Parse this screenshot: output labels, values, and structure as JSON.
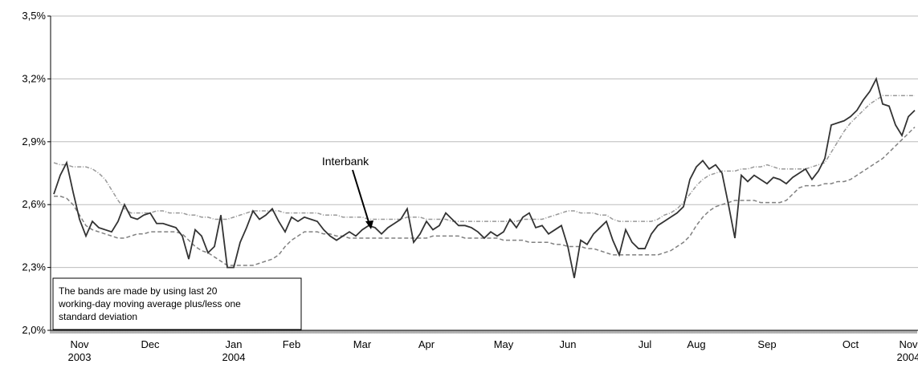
{
  "chart_data": {
    "type": "line",
    "categories": [
      null,
      null,
      null,
      null,
      "Nov 2003",
      null,
      null,
      null,
      null,
      null,
      null,
      null,
      null,
      null,
      null,
      "Dec",
      null,
      null,
      null,
      null,
      null,
      null,
      null,
      null,
      null,
      null,
      null,
      null,
      "Jan 2004",
      null,
      null,
      null,
      null,
      null,
      null,
      null,
      null,
      "Feb",
      null,
      null,
      null,
      null,
      null,
      null,
      null,
      null,
      null,
      null,
      "Mar",
      null,
      null,
      null,
      null,
      null,
      null,
      null,
      null,
      null,
      "Apr",
      null,
      null,
      null,
      null,
      null,
      null,
      null,
      null,
      null,
      null,
      null,
      "May",
      null,
      null,
      null,
      null,
      null,
      null,
      null,
      null,
      null,
      "Jun",
      null,
      null,
      null,
      null,
      null,
      null,
      null,
      null,
      null,
      null,
      null,
      "Jul",
      null,
      null,
      null,
      null,
      null,
      null,
      null,
      "Aug",
      null,
      null,
      null,
      null,
      null,
      null,
      null,
      null,
      null,
      null,
      "Sep",
      null,
      null,
      null,
      null,
      null,
      null,
      null,
      null,
      null,
      null,
      null,
      null,
      "Oct",
      null,
      null,
      null,
      null,
      null,
      null,
      null,
      null,
      "Nov 2004",
      null
    ],
    "series": [
      {
        "color": "#333333",
        "style": "solid",
        "values": [
          2.65,
          2.74,
          2.8,
          2.66,
          2.53,
          2.45,
          2.52,
          2.49,
          2.48,
          2.47,
          2.52,
          2.6,
          2.54,
          2.53,
          2.55,
          2.56,
          2.51,
          2.51,
          2.5,
          2.49,
          2.45,
          2.34,
          2.48,
          2.45,
          2.37,
          2.4,
          2.55,
          2.3,
          2.3,
          2.42,
          2.49,
          2.57,
          2.53,
          2.55,
          2.58,
          2.52,
          2.47,
          2.54,
          2.52,
          2.54,
          2.53,
          2.52,
          2.48,
          2.45,
          2.43,
          2.45,
          2.47,
          2.45,
          2.48,
          2.5,
          2.49,
          2.46,
          2.49,
          2.51,
          2.53,
          2.58,
          2.42,
          2.46,
          2.52,
          2.48,
          2.5,
          2.56,
          2.53,
          2.5,
          2.5,
          2.49,
          2.47,
          2.44,
          2.47,
          2.45,
          2.47,
          2.53,
          2.49,
          2.54,
          2.56,
          2.49,
          2.5,
          2.46,
          2.48,
          2.5,
          2.4,
          2.25,
          2.43,
          2.41,
          2.46,
          2.49,
          2.52,
          2.43,
          2.36,
          2.48,
          2.42,
          2.39,
          2.39,
          2.46,
          2.5,
          2.52,
          2.54,
          2.56,
          2.59,
          2.72,
          2.78,
          2.81,
          2.77,
          2.79,
          2.75,
          2.6,
          2.44,
          2.74,
          2.71,
          2.74,
          2.72,
          2.7,
          2.73,
          2.72,
          2.7,
          2.73,
          2.75,
          2.77,
          2.72,
          2.76,
          2.82,
          2.98,
          2.99,
          3.0,
          3.02,
          3.05,
          3.1,
          3.14,
          3.2,
          3.08,
          3.07,
          2.98,
          2.93,
          3.02,
          3.05
        ]
      },
      {
        "color": "#999999",
        "style": "dashdot",
        "values": [
          2.8,
          2.79,
          2.79,
          2.78,
          2.78,
          2.78,
          2.77,
          2.75,
          2.72,
          2.67,
          2.62,
          2.58,
          2.56,
          2.56,
          2.56,
          2.56,
          2.57,
          2.57,
          2.56,
          2.56,
          2.56,
          2.55,
          2.55,
          2.54,
          2.54,
          2.53,
          2.53,
          2.53,
          2.54,
          2.55,
          2.56,
          2.57,
          2.57,
          2.57,
          2.57,
          2.57,
          2.56,
          2.56,
          2.56,
          2.56,
          2.56,
          2.56,
          2.55,
          2.55,
          2.55,
          2.54,
          2.54,
          2.54,
          2.54,
          2.53,
          2.53,
          2.53,
          2.53,
          2.53,
          2.53,
          2.54,
          2.54,
          2.54,
          2.53,
          2.53,
          2.53,
          2.53,
          2.52,
          2.52,
          2.52,
          2.52,
          2.52,
          2.52,
          2.52,
          2.52,
          2.52,
          2.52,
          2.52,
          2.53,
          2.53,
          2.53,
          2.53,
          2.54,
          2.55,
          2.56,
          2.57,
          2.57,
          2.56,
          2.56,
          2.56,
          2.55,
          2.55,
          2.53,
          2.52,
          2.52,
          2.52,
          2.52,
          2.52,
          2.52,
          2.53,
          2.55,
          2.56,
          2.58,
          2.61,
          2.65,
          2.69,
          2.72,
          2.74,
          2.75,
          2.76,
          2.76,
          2.76,
          2.77,
          2.77,
          2.78,
          2.78,
          2.79,
          2.78,
          2.77,
          2.77,
          2.77,
          2.77,
          2.77,
          2.78,
          2.79,
          2.8,
          2.85,
          2.9,
          2.95,
          2.99,
          3.02,
          3.05,
          3.08,
          3.1,
          3.12,
          3.12,
          3.12,
          3.12,
          3.12,
          3.12
        ]
      },
      {
        "color": "#808080",
        "style": "dashed",
        "values": [
          2.64,
          2.64,
          2.63,
          2.6,
          2.55,
          2.5,
          2.48,
          2.47,
          2.46,
          2.45,
          2.44,
          2.44,
          2.45,
          2.46,
          2.46,
          2.47,
          2.47,
          2.47,
          2.47,
          2.47,
          2.46,
          2.43,
          2.4,
          2.38,
          2.37,
          2.35,
          2.33,
          2.31,
          2.31,
          2.31,
          2.31,
          2.31,
          2.32,
          2.33,
          2.34,
          2.36,
          2.4,
          2.43,
          2.45,
          2.47,
          2.47,
          2.47,
          2.46,
          2.46,
          2.45,
          2.45,
          2.44,
          2.44,
          2.44,
          2.44,
          2.44,
          2.44,
          2.44,
          2.44,
          2.44,
          2.44,
          2.44,
          2.44,
          2.44,
          2.45,
          2.45,
          2.45,
          2.45,
          2.45,
          2.44,
          2.44,
          2.44,
          2.44,
          2.44,
          2.44,
          2.43,
          2.43,
          2.43,
          2.43,
          2.42,
          2.42,
          2.42,
          2.42,
          2.41,
          2.41,
          2.4,
          2.4,
          2.4,
          2.39,
          2.39,
          2.38,
          2.37,
          2.36,
          2.36,
          2.36,
          2.36,
          2.36,
          2.36,
          2.36,
          2.36,
          2.37,
          2.38,
          2.4,
          2.42,
          2.45,
          2.5,
          2.54,
          2.57,
          2.59,
          2.6,
          2.61,
          2.62,
          2.62,
          2.62,
          2.62,
          2.61,
          2.61,
          2.61,
          2.61,
          2.62,
          2.65,
          2.68,
          2.69,
          2.69,
          2.69,
          2.7,
          2.7,
          2.71,
          2.71,
          2.72,
          2.74,
          2.76,
          2.78,
          2.8,
          2.82,
          2.85,
          2.88,
          2.91,
          2.94,
          2.97
        ]
      }
    ],
    "ylim": [
      2.0,
      3.5
    ],
    "yticks": [
      {
        "value": 2.0,
        "label": "2,0%"
      },
      {
        "value": 2.3,
        "label": "2,3%"
      },
      {
        "value": 2.6,
        "label": "2,6%"
      },
      {
        "value": 2.9,
        "label": "2,9%"
      },
      {
        "value": 3.2,
        "label": "3,2%"
      },
      {
        "value": 3.5,
        "label": "3,5%"
      }
    ],
    "grid": true,
    "annotation": "Interbank",
    "note": [
      "The bands are made by using last 20",
      "working-day moving average plus/less one",
      "standard deviation"
    ]
  }
}
